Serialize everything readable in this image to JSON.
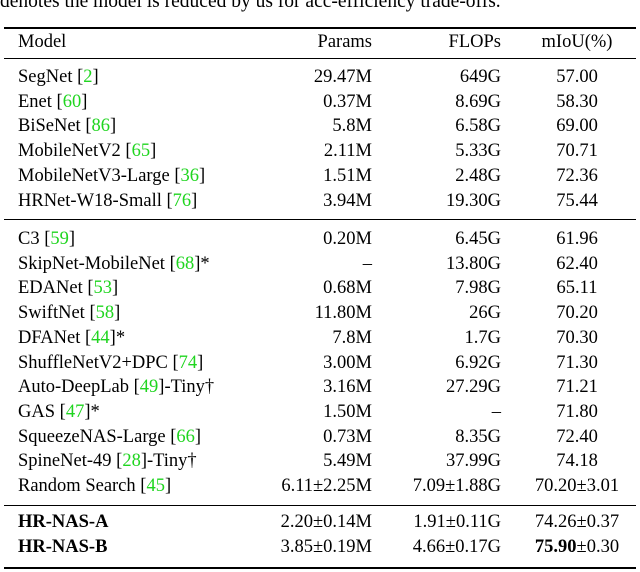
{
  "caption": "denotes the model is reduced by us for acc-efficiency trade-offs.",
  "header": {
    "model": "Model",
    "params": "Params",
    "flops": "FLOPs",
    "miou": "mIoU(%)"
  },
  "colors": {
    "citation": "#1fd51f"
  },
  "groups": [
    {
      "rows": [
        {
          "name": "SegNet ",
          "cite": "2",
          "suffix": "",
          "params": "29.47M",
          "flops": "649G",
          "miou": "57.00",
          "miou_extra": ""
        },
        {
          "name": "Enet ",
          "cite": "60",
          "suffix": "",
          "params": "0.37M",
          "flops": "8.69G",
          "miou": "58.30",
          "miou_extra": ""
        },
        {
          "name": "BiSeNet ",
          "cite": "86",
          "suffix": "",
          "params": "5.8M",
          "flops": "6.58G",
          "miou": "69.00",
          "miou_extra": ""
        },
        {
          "name": "MobileNetV2 ",
          "cite": "65",
          "suffix": "",
          "params": "2.11M",
          "flops": "5.33G",
          "miou": "70.71",
          "miou_extra": ""
        },
        {
          "name": "MobileNetV3-Large ",
          "cite": "36",
          "suffix": "",
          "params": "1.51M",
          "flops": "2.48G",
          "miou": "72.36",
          "miou_extra": ""
        },
        {
          "name": "HRNet-W18-Small ",
          "cite": "76",
          "suffix": "",
          "params": "3.94M",
          "flops": "19.30G",
          "miou": "75.44",
          "miou_extra": ""
        }
      ]
    },
    {
      "rows": [
        {
          "name": "C3 ",
          "cite": "59",
          "suffix": "",
          "params": "0.20M",
          "flops": "6.45G",
          "miou": "61.96",
          "miou_extra": ""
        },
        {
          "name": "SkipNet-MobileNet ",
          "cite": "68",
          "suffix": "*",
          "params": "–",
          "flops": "13.80G",
          "miou": "62.40",
          "miou_extra": ""
        },
        {
          "name": "EDANet ",
          "cite": "53",
          "suffix": "",
          "params": "0.68M",
          "flops": "7.98G",
          "miou": "65.11",
          "miou_extra": ""
        },
        {
          "name": "SwiftNet ",
          "cite": "58",
          "suffix": "",
          "params": "11.80M",
          "flops": "26G",
          "miou": "70.20",
          "miou_extra": ""
        },
        {
          "name": "DFANet ",
          "cite": "44",
          "suffix": "*",
          "params": "7.8M",
          "flops": "1.7G",
          "miou": "70.30",
          "miou_extra": ""
        },
        {
          "name": "ShuffleNetV2+DPC ",
          "cite": "74",
          "suffix": "",
          "params": "3.00M",
          "flops": "6.92G",
          "miou": "71.30",
          "miou_extra": ""
        },
        {
          "name": "Auto-DeepLab ",
          "cite": "49",
          "suffix": "-Tiny†",
          "params": "3.16M",
          "flops": "27.29G",
          "miou": "71.21",
          "miou_extra": ""
        },
        {
          "name": "GAS ",
          "cite": "47",
          "suffix": "*",
          "params": "1.50M",
          "flops": "–",
          "miou": "71.80",
          "miou_extra": ""
        },
        {
          "name": "SqueezeNAS-Large ",
          "cite": "66",
          "suffix": "",
          "params": "0.73M",
          "flops": "8.35G",
          "miou": "72.40",
          "miou_extra": ""
        },
        {
          "name": "SpineNet-49 ",
          "cite": "28",
          "suffix": "-Tiny†",
          "params": "5.49M",
          "flops": "37.99G",
          "miou": "74.18",
          "miou_extra": ""
        },
        {
          "name": "Random Search ",
          "cite": "45",
          "suffix": "",
          "params": "6.11±2.25M",
          "flops": "7.09±1.88G",
          "miou": "70.20±3.01",
          "miou_extra": ""
        }
      ]
    },
    {
      "rows": [
        {
          "name": "HR-NAS-A",
          "cite": "",
          "suffix": "",
          "params": "2.20±0.14M",
          "flops": "1.91±0.11G",
          "miou": "74.26±0.37",
          "miou_extra": "",
          "bold_name": true,
          "bold_miou": false
        },
        {
          "name": "HR-NAS-B",
          "cite": "",
          "suffix": "",
          "params": "3.85±0.19M",
          "flops": "4.66±0.17G",
          "miou": "75.90",
          "miou_extra": "±0.30",
          "bold_name": true,
          "bold_miou": true
        }
      ]
    }
  ]
}
